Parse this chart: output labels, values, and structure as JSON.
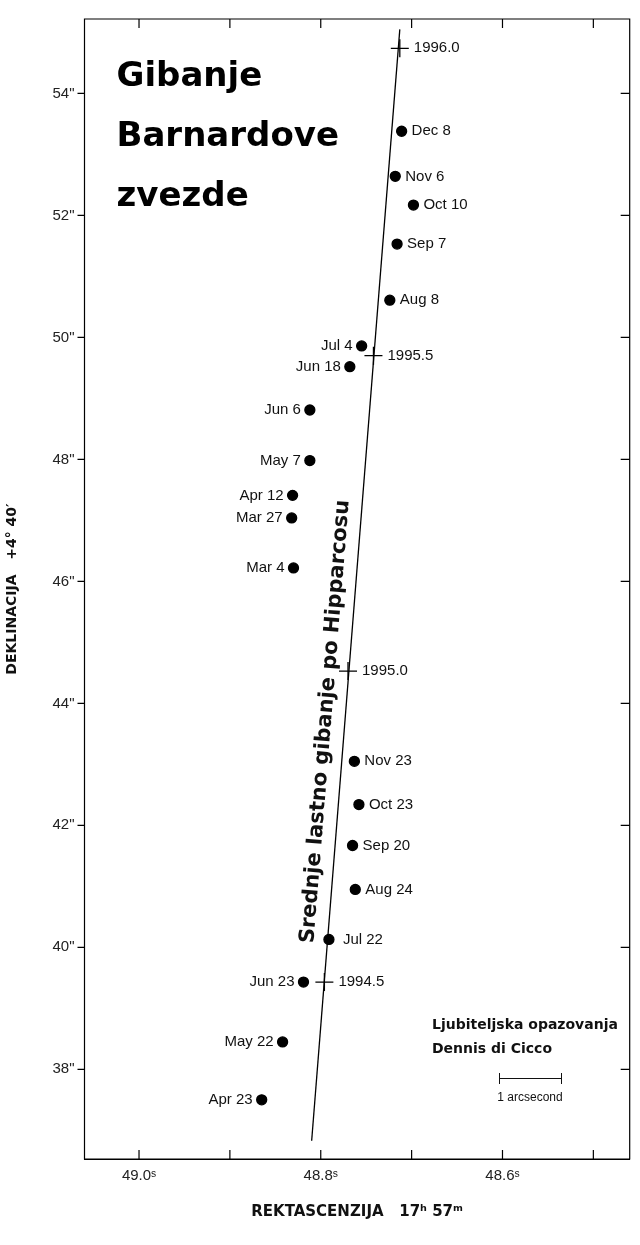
{
  "chart_data": {
    "type": "scatter",
    "title": "Gibanje Barnardove zvezde",
    "xlabel": "REKTASCENZIJA   17ʰ 57ᵐ",
    "ylabel": "DEKLINACIJA   +4° 40′",
    "xlim": [
      49.06,
      48.46
    ],
    "ylim": [
      36.53,
      55.22
    ],
    "xticks": [
      {
        "value": 49.0,
        "label": "49.0ˢ"
      },
      {
        "value": 48.9,
        "label": null
      },
      {
        "value": 48.8,
        "label": "48.8ˢ"
      },
      {
        "value": 48.7,
        "label": null
      },
      {
        "value": 48.6,
        "label": "48.6ˢ"
      },
      {
        "value": 48.5,
        "label": null
      }
    ],
    "yticks": [
      {
        "value": 38,
        "label": "38\""
      },
      {
        "value": 40,
        "label": "40\""
      },
      {
        "value": 42,
        "label": "42\""
      },
      {
        "value": 44,
        "label": "44\""
      },
      {
        "value": 46,
        "label": "46\""
      },
      {
        "value": 48,
        "label": "48\""
      },
      {
        "value": 50,
        "label": "50\""
      },
      {
        "value": 52,
        "label": "52\""
      },
      {
        "value": 54,
        "label": "54\""
      }
    ],
    "grid": false,
    "legend": false,
    "series": [
      {
        "type": "scatter",
        "color": "#000000",
        "marker": "circle",
        "x": [
          48.865,
          48.842,
          48.819,
          48.791,
          48.762,
          48.765,
          48.758,
          48.763,
          48.83,
          48.832,
          48.831,
          48.812,
          48.812,
          48.768,
          48.755,
          48.724,
          48.716,
          48.698,
          48.718,
          48.711
        ],
        "values": [
          37.5,
          38.45,
          39.43,
          40.13,
          40.95,
          41.67,
          42.34,
          43.05,
          46.22,
          47.04,
          47.41,
          47.98,
          48.81,
          49.52,
          49.86,
          50.61,
          51.53,
          52.17,
          52.64,
          53.38
        ]
      },
      {
        "type": "line",
        "color": "#000000",
        "marker": "none",
        "x": [
          48.81,
          48.713
        ],
        "values": [
          36.83,
          55.05
        ]
      },
      {
        "type": "scatter",
        "color": "#000000",
        "marker": "cross",
        "x": [
          48.796,
          48.77,
          48.742,
          48.713
        ],
        "values": [
          39.43,
          44.53,
          49.7,
          54.74
        ]
      }
    ],
    "annotations": [
      "Srednje lastno gibanje po Hipparcosu",
      "Ljubiteljska opazovanja",
      "Dennis di Cicco",
      "1 arcsecond",
      {
        "text": "Apr 23",
        "x": 48.865,
        "y": 37.5
      },
      {
        "text": "May 22",
        "x": 48.842,
        "y": 38.45
      },
      {
        "text": "Jun 23",
        "x": 48.819,
        "y": 39.43
      },
      {
        "text": "Jul 22",
        "x": 48.791,
        "y": 40.13
      },
      {
        "text": "Aug 24",
        "x": 48.762,
        "y": 40.95
      },
      {
        "text": "Sep 20",
        "x": 48.765,
        "y": 41.67
      },
      {
        "text": "Oct 23",
        "x": 48.758,
        "y": 42.34
      },
      {
        "text": "Nov 23",
        "x": 48.763,
        "y": 43.05
      },
      {
        "text": "Mar 4",
        "x": 48.83,
        "y": 46.22
      },
      {
        "text": "Mar 27",
        "x": 48.832,
        "y": 47.04
      },
      {
        "text": "Apr 12",
        "x": 48.831,
        "y": 47.41
      },
      {
        "text": "May 7",
        "x": 48.812,
        "y": 47.98
      },
      {
        "text": "Jun 6",
        "x": 48.812,
        "y": 48.81
      },
      {
        "text": "Jun 18",
        "x": 48.768,
        "y": 49.52
      },
      {
        "text": "Jul 4",
        "x": 48.755,
        "y": 49.86
      },
      {
        "text": "Aug 8",
        "x": 48.724,
        "y": 50.61
      },
      {
        "text": "Sep 7",
        "x": 48.716,
        "y": 51.53
      },
      {
        "text": "Oct 10",
        "x": 48.698,
        "y": 52.17
      },
      {
        "text": "Nov 6",
        "x": 48.718,
        "y": 52.64
      },
      {
        "text": "Dec 8",
        "x": 48.711,
        "y": 53.38
      },
      {
        "text": "1994.5",
        "x": 48.796,
        "y": 39.43
      },
      {
        "text": "1995.0",
        "x": 48.77,
        "y": 44.53
      },
      {
        "text": "1995.5",
        "x": 48.742,
        "y": 49.7
      },
      {
        "text": "1996.0",
        "x": 48.713,
        "y": 54.74
      }
    ]
  }
}
